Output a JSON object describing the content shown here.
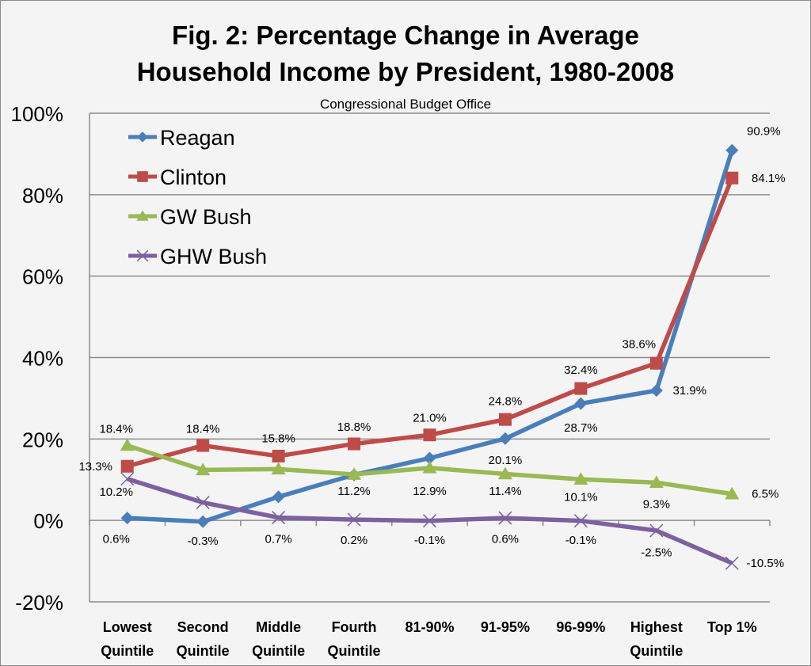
{
  "chart_data": {
    "type": "line",
    "title_lines": [
      "Fig. 2: Percentage Change in Average",
      "Household Income by President, 1980-2008"
    ],
    "subtitle": "Congressional Budget Office",
    "xlabel": "",
    "ylabel": "",
    "ylim": [
      -20,
      100
    ],
    "yticks": [
      -20,
      0,
      20,
      40,
      60,
      80,
      100
    ],
    "ytick_labels": [
      "-20%",
      "0%",
      "20%",
      "40%",
      "60%",
      "80%",
      "100%"
    ],
    "grid": true,
    "legend_position": "top-left",
    "categories": [
      [
        "Lowest",
        "Quintile"
      ],
      [
        "Second",
        "Quintile"
      ],
      [
        "Middle",
        "Quintile"
      ],
      [
        "Fourth",
        "Quintile"
      ],
      [
        "81-90%"
      ],
      [
        "91-95%"
      ],
      [
        "96-99%"
      ],
      [
        "Highest",
        "Quintile"
      ],
      [
        "Top 1%"
      ]
    ],
    "series": [
      {
        "name": "Reagan",
        "color": "#4a7ebb",
        "marker": "diamond",
        "values": [
          0.6,
          -0.3,
          5.8,
          11.2,
          15.3,
          20.1,
          28.7,
          31.9,
          90.9
        ]
      },
      {
        "name": "Clinton",
        "color": "#be4b48",
        "marker": "square",
        "values": [
          13.3,
          18.4,
          15.8,
          18.8,
          21.0,
          24.8,
          32.4,
          38.6,
          84.1
        ]
      },
      {
        "name": "GW Bush",
        "color": "#98b954",
        "marker": "triangle",
        "values": [
          18.4,
          12.4,
          12.6,
          11.3,
          12.9,
          11.4,
          10.1,
          9.3,
          6.5
        ]
      },
      {
        "name": "GHW Bush",
        "color": "#7d60a0",
        "marker": "x",
        "values": [
          10.2,
          4.4,
          0.7,
          0.2,
          -0.1,
          0.6,
          -0.1,
          -2.5,
          -10.5
        ]
      }
    ],
    "data_labels": [
      {
        "text": "18.4%",
        "cat": 0,
        "value": 22.5,
        "dx": -14
      },
      {
        "text": "13.3%",
        "cat": 0,
        "value": 13.3,
        "dx": -40
      },
      {
        "text": "10.2%",
        "cat": 0,
        "value": 7.0,
        "dx": -14
      },
      {
        "text": "0.6%",
        "cat": 0,
        "value": -4.5,
        "dx": -14
      },
      {
        "text": "18.4%",
        "cat": 1,
        "value": 22.5,
        "dx": 0
      },
      {
        "text": "-0.3%",
        "cat": 1,
        "value": -5.0,
        "dx": 0
      },
      {
        "text": "15.8%",
        "cat": 2,
        "value": 20.2,
        "dx": 0
      },
      {
        "text": "0.7%",
        "cat": 2,
        "value": -4.5,
        "dx": 0
      },
      {
        "text": "18.8%",
        "cat": 3,
        "value": 23.0,
        "dx": 0
      },
      {
        "text": "11.2%",
        "cat": 3,
        "value": 7.2,
        "dx": 0
      },
      {
        "text": "0.2%",
        "cat": 3,
        "value": -4.8,
        "dx": 0
      },
      {
        "text": "21.0%",
        "cat": 4,
        "value": 25.2,
        "dx": 0
      },
      {
        "text": "12.9%",
        "cat": 4,
        "value": 7.2,
        "dx": 0
      },
      {
        "text": "-0.1%",
        "cat": 4,
        "value": -4.8,
        "dx": 0
      },
      {
        "text": "24.8%",
        "cat": 5,
        "value": 29.3,
        "dx": 0
      },
      {
        "text": "20.1%",
        "cat": 5,
        "value": 14.8,
        "dx": 0
      },
      {
        "text": "11.4%",
        "cat": 5,
        "value": 7.2,
        "dx": 0
      },
      {
        "text": "0.6%",
        "cat": 5,
        "value": -4.5,
        "dx": 0
      },
      {
        "text": "32.4%",
        "cat": 6,
        "value": 37.0,
        "dx": 0
      },
      {
        "text": "28.7%",
        "cat": 6,
        "value": 22.8,
        "dx": 0
      },
      {
        "text": "10.1%",
        "cat": 6,
        "value": 5.8,
        "dx": 0
      },
      {
        "text": "-0.1%",
        "cat": 6,
        "value": -4.8,
        "dx": 0
      },
      {
        "text": "38.6%",
        "cat": 7,
        "value": 43.3,
        "dx": -22
      },
      {
        "text": "31.9%",
        "cat": 7,
        "value": 31.9,
        "dx": 42
      },
      {
        "text": "9.3%",
        "cat": 7,
        "value": 4.0,
        "dx": 0
      },
      {
        "text": "-2.5%",
        "cat": 7,
        "value": -7.8,
        "dx": 0
      },
      {
        "text": "90.9%",
        "cat": 8,
        "value": 95.6,
        "dx": 40
      },
      {
        "text": "84.1%",
        "cat": 8,
        "value": 84.1,
        "dx": 46
      },
      {
        "text": "6.5%",
        "cat": 8,
        "value": 6.5,
        "dx": 42
      },
      {
        "text": "-10.5%",
        "cat": 8,
        "value": -10.5,
        "dx": 42
      }
    ]
  }
}
